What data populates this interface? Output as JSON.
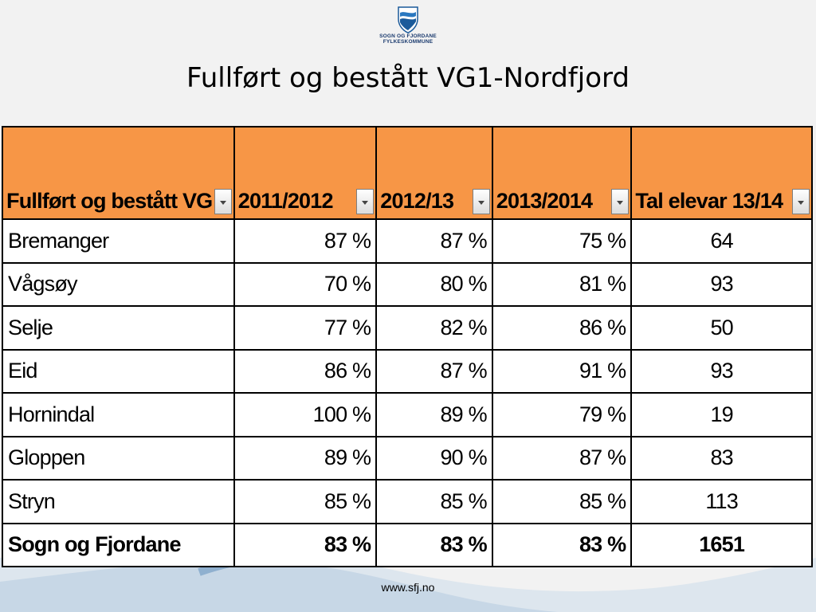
{
  "slide": {
    "logo_line1": "SOGN OG FJORDANE",
    "logo_line2": "FYLKESKOMMUNE",
    "title": "Fullført og bestått VG1-Nordfjord",
    "footer": "www.sfj.no",
    "accent_color": "#f79646"
  },
  "table": {
    "headers": [
      "Fullført og bestått VG",
      "2011/2012",
      "2012/13",
      "2013/2014",
      "Tal elevar 13/14"
    ],
    "rows": [
      {
        "name": "Bremanger",
        "y2011": "87 %",
        "y2012": "87 %",
        "y2013": "75 %",
        "count": "64"
      },
      {
        "name": "Vågsøy",
        "y2011": "70 %",
        "y2012": "80 %",
        "y2013": "81 %",
        "count": "93"
      },
      {
        "name": "Selje",
        "y2011": "77 %",
        "y2012": "82 %",
        "y2013": "86 %",
        "count": "50"
      },
      {
        "name": "Eid",
        "y2011": "86 %",
        "y2012": "87 %",
        "y2013": "91 %",
        "count": "93"
      },
      {
        "name": "Hornindal",
        "y2011": "100 %",
        "y2012": "89 %",
        "y2013": "79 %",
        "count": "19"
      },
      {
        "name": "Gloppen",
        "y2011": "89 %",
        "y2012": "90 %",
        "y2013": "87 %",
        "count": "83"
      },
      {
        "name": "Stryn",
        "y2011": "85 %",
        "y2012": "85 %",
        "y2013": "85 %",
        "count": "113"
      }
    ],
    "total": {
      "name": "Sogn og Fjordane",
      "y2011": "83 %",
      "y2012": "83 %",
      "y2013": "83 %",
      "count": "1651"
    }
  }
}
